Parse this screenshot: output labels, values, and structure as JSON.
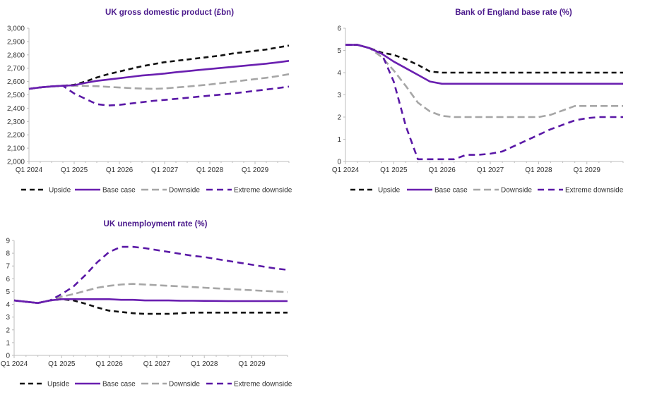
{
  "colors": {
    "upside": "#111111",
    "base": "#6a1fb0",
    "downside": "#a6a6a6",
    "extreme": "#5a18a6",
    "title": "#4b1a8c"
  },
  "legend": [
    {
      "key": "upside",
      "label": "Upside"
    },
    {
      "key": "base",
      "label": "Base case"
    },
    {
      "key": "downside",
      "label": "Downside"
    },
    {
      "key": "extreme",
      "label": "Extreme downside"
    }
  ],
  "chart_data": [
    {
      "id": "gdp",
      "type": "line",
      "title": "UK gross domestic product (£bn)",
      "xlabels": [
        "Q1 2024",
        "Q1 2025",
        "Q1 2026",
        "Q1 2027",
        "Q1 2028",
        "Q1 2029"
      ],
      "xlim": [
        0,
        23
      ],
      "ylim": [
        2000,
        3000
      ],
      "yticks": [
        "2,000",
        "2,100",
        "2,200",
        "2,300",
        "2,400",
        "2,500",
        "2,600",
        "2,700",
        "2,800",
        "2,900",
        "3,000"
      ],
      "series": [
        {
          "key": "upside",
          "name": "Upside",
          "values": [
            2545,
            2556,
            2563,
            2568,
            2575,
            2600,
            2630,
            2655,
            2675,
            2695,
            2715,
            2730,
            2745,
            2755,
            2765,
            2775,
            2785,
            2795,
            2810,
            2820,
            2830,
            2840,
            2855,
            2870
          ]
        },
        {
          "key": "base",
          "name": "Base case",
          "values": [
            2545,
            2556,
            2563,
            2568,
            2572,
            2590,
            2605,
            2615,
            2625,
            2635,
            2645,
            2652,
            2660,
            2670,
            2678,
            2686,
            2694,
            2702,
            2710,
            2718,
            2726,
            2734,
            2744,
            2755
          ]
        },
        {
          "key": "downside",
          "name": "Downside",
          "values": [
            2545,
            2556,
            2563,
            2568,
            2568,
            2567,
            2565,
            2560,
            2555,
            2550,
            2547,
            2545,
            2548,
            2555,
            2562,
            2570,
            2578,
            2588,
            2598,
            2608,
            2618,
            2628,
            2640,
            2655
          ]
        },
        {
          "key": "extreme",
          "name": "Extreme downside",
          "values": [
            2545,
            2556,
            2563,
            2568,
            2510,
            2470,
            2430,
            2420,
            2425,
            2435,
            2445,
            2455,
            2462,
            2470,
            2478,
            2486,
            2494,
            2502,
            2510,
            2520,
            2530,
            2540,
            2550,
            2562
          ]
        }
      ]
    },
    {
      "id": "rate",
      "type": "line",
      "title": "Bank of England base rate (%)",
      "xlabels": [
        "Q1 2024",
        "Q1 2025",
        "Q1 2026",
        "Q1 2027",
        "Q1 2028",
        "Q1 2029"
      ],
      "xlim": [
        0,
        23
      ],
      "ylim": [
        0,
        6
      ],
      "yticks": [
        "0",
        "1",
        "2",
        "3",
        "4",
        "5",
        "6"
      ],
      "series": [
        {
          "key": "upside",
          "name": "Upside",
          "values": [
            5.25,
            5.25,
            5.1,
            4.9,
            4.8,
            4.6,
            4.35,
            4.05,
            4.0,
            4.0,
            4.0,
            4.0,
            4.0,
            4.0,
            4.0,
            4.0,
            4.0,
            4.0,
            4.0,
            4.0,
            4.0,
            4.0,
            4.0,
            4.0
          ]
        },
        {
          "key": "base",
          "name": "Base case",
          "values": [
            5.25,
            5.25,
            5.1,
            4.85,
            4.5,
            4.2,
            3.9,
            3.6,
            3.5,
            3.5,
            3.5,
            3.5,
            3.5,
            3.5,
            3.5,
            3.5,
            3.5,
            3.5,
            3.5,
            3.5,
            3.5,
            3.5,
            3.5,
            3.5
          ]
        },
        {
          "key": "downside",
          "name": "Downside",
          "values": [
            5.25,
            5.25,
            5.1,
            4.7,
            4.1,
            3.4,
            2.65,
            2.25,
            2.05,
            2.0,
            2.0,
            2.0,
            2.0,
            2.0,
            2.0,
            2.0,
            2.0,
            2.1,
            2.3,
            2.5,
            2.5,
            2.5,
            2.5,
            2.5
          ]
        },
        {
          "key": "extreme",
          "name": "Extreme downside",
          "values": [
            5.25,
            5.25,
            5.1,
            4.85,
            3.6,
            1.6,
            0.1,
            0.1,
            0.1,
            0.1,
            0.3,
            0.3,
            0.35,
            0.45,
            0.7,
            0.95,
            1.2,
            1.45,
            1.65,
            1.85,
            1.95,
            2.0,
            2.0,
            2.0
          ]
        }
      ]
    },
    {
      "id": "unemp",
      "type": "line",
      "title": "UK unemployment rate (%)",
      "xlabels": [
        "Q1 2024",
        "Q1 2025",
        "Q1 2026",
        "Q1 2027",
        "Q1 2028",
        "Q1 2029"
      ],
      "xlim": [
        0,
        23
      ],
      "ylim": [
        0,
        9
      ],
      "yticks": [
        "0",
        "1",
        "2",
        "3",
        "4",
        "5",
        "6",
        "7",
        "8",
        "9"
      ],
      "series": [
        {
          "key": "upside",
          "name": "Upside",
          "values": [
            4.3,
            4.2,
            4.1,
            4.3,
            4.4,
            4.3,
            4.05,
            3.75,
            3.5,
            3.4,
            3.3,
            3.25,
            3.25,
            3.25,
            3.3,
            3.35,
            3.35,
            3.35,
            3.35,
            3.35,
            3.35,
            3.35,
            3.35,
            3.35
          ]
        },
        {
          "key": "base",
          "name": "Base case",
          "values": [
            4.3,
            4.2,
            4.1,
            4.3,
            4.4,
            4.4,
            4.4,
            4.4,
            4.4,
            4.35,
            4.35,
            4.3,
            4.3,
            4.3,
            4.28,
            4.28,
            4.27,
            4.26,
            4.25,
            4.25,
            4.25,
            4.25,
            4.25,
            4.25
          ]
        },
        {
          "key": "downside",
          "name": "Downside",
          "values": [
            4.3,
            4.2,
            4.1,
            4.3,
            4.6,
            4.8,
            5.05,
            5.3,
            5.45,
            5.55,
            5.6,
            5.55,
            5.5,
            5.45,
            5.4,
            5.35,
            5.3,
            5.25,
            5.2,
            5.15,
            5.1,
            5.05,
            5.0,
            4.95
          ]
        },
        {
          "key": "extreme",
          "name": "Extreme downside",
          "values": [
            4.3,
            4.2,
            4.1,
            4.3,
            4.8,
            5.4,
            6.3,
            7.3,
            8.1,
            8.5,
            8.5,
            8.4,
            8.25,
            8.1,
            7.95,
            7.8,
            7.7,
            7.55,
            7.4,
            7.25,
            7.1,
            6.95,
            6.8,
            6.7
          ]
        }
      ]
    }
  ]
}
